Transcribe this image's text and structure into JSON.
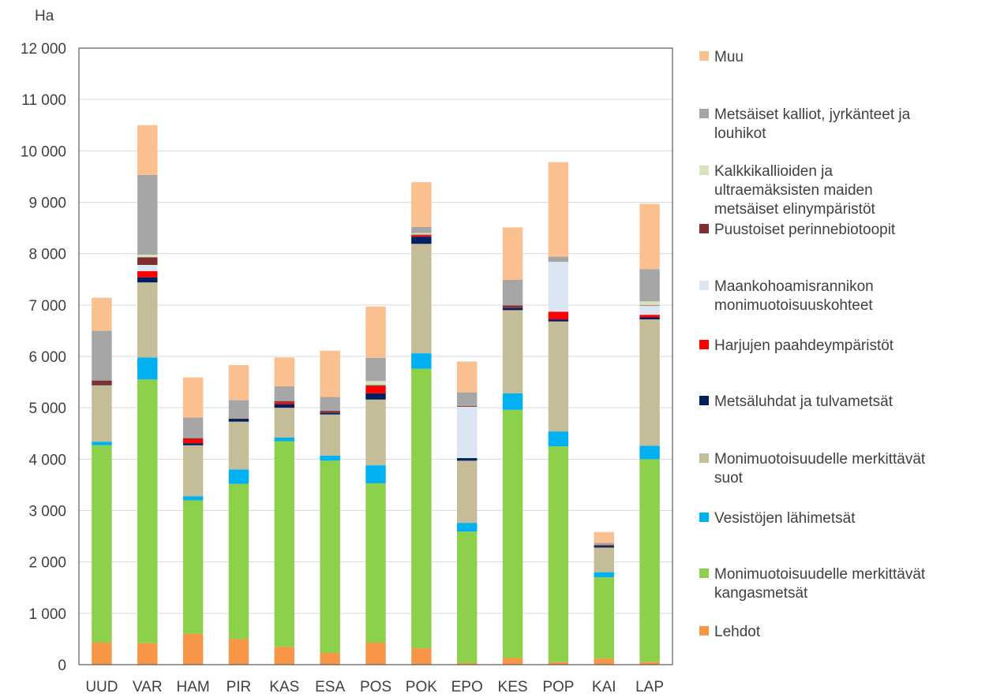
{
  "chart_data": {
    "type": "bar",
    "stacked": true,
    "title": "",
    "ylabel": "Ha",
    "xlabel": "",
    "ylim": [
      0,
      12000
    ],
    "y_ticks": [
      {
        "value": 0,
        "label": "0"
      },
      {
        "value": 1000,
        "label": "1 000"
      },
      {
        "value": 2000,
        "label": "2 000"
      },
      {
        "value": 3000,
        "label": "3 000"
      },
      {
        "value": 4000,
        "label": "4 000"
      },
      {
        "value": 5000,
        "label": "5 000"
      },
      {
        "value": 6000,
        "label": "6 000"
      },
      {
        "value": 7000,
        "label": "7 000"
      },
      {
        "value": 8000,
        "label": "8 000"
      },
      {
        "value": 9000,
        "label": "9 000"
      },
      {
        "value": 10000,
        "label": "10 000"
      },
      {
        "value": 11000,
        "label": "11 000"
      },
      {
        "value": 12000,
        "label": "12 000"
      }
    ],
    "grid": true,
    "legend_position": "right",
    "categories": [
      "UUD",
      "VAR",
      "HAM",
      "PIR",
      "KAS",
      "ESA",
      "POS",
      "POK",
      "EPO",
      "KES",
      "POP",
      "KAI",
      "LAP"
    ],
    "series": [
      {
        "name": "Lehdot",
        "color": "#F79646",
        "values": [
          430,
          420,
          600,
          500,
          350,
          230,
          430,
          320,
          30,
          130,
          50,
          120,
          50
        ]
      },
      {
        "name": "Monimuotoisuudelle merkittävät kangasmetsät",
        "color": "#8DD14A",
        "values": [
          3840,
          5130,
          2600,
          3020,
          4000,
          3740,
          3100,
          5440,
          2560,
          4830,
          4200,
          1580,
          3950
        ]
      },
      {
        "name": "Vesistöjen lähimetsät",
        "color": "#00B0F0",
        "values": [
          70,
          430,
          80,
          280,
          70,
          100,
          350,
          300,
          170,
          320,
          290,
          100,
          260
        ]
      },
      {
        "name": "Monimuotoisuudelle merkittävät suot",
        "color": "#C4BD97",
        "values": [
          1100,
          1460,
          990,
          930,
          580,
          800,
          1280,
          2130,
          1210,
          1620,
          2140,
          480,
          2460
        ]
      },
      {
        "name": "Metsäluhdat ja tulvametsät",
        "color": "#002060",
        "values": [
          20,
          100,
          40,
          50,
          70,
          30,
          120,
          140,
          50,
          40,
          40,
          30,
          40
        ]
      },
      {
        "name": "Harjujen paahdeympäristöt",
        "color": "#FF0000",
        "values": [
          10,
          120,
          80,
          0,
          30,
          0,
          140,
          30,
          0,
          0,
          150,
          0,
          50
        ]
      },
      {
        "name": "Maankohoamisrannikon monimuotoisuuskohteet",
        "color": "#DCE6F2",
        "values": [
          0,
          120,
          0,
          0,
          0,
          0,
          0,
          0,
          1000,
          0,
          970,
          0,
          180
        ]
      },
      {
        "name": "Puustoiset perinnebiotoopit",
        "color": "#7F2F2F",
        "values": [
          60,
          150,
          20,
          10,
          30,
          40,
          20,
          10,
          20,
          50,
          0,
          20,
          10
        ]
      },
      {
        "name": "Kalkkikallioiden ja ultraemäksisten maiden metsäiset elinympäristöt",
        "color": "#D7E4BD",
        "values": [
          0,
          50,
          0,
          0,
          0,
          0,
          80,
          30,
          10,
          0,
          0,
          0,
          70
        ]
      },
      {
        "name": "Metsäiset kalliot, jyrkänteet ja louhikot",
        "color": "#A6A6A6",
        "values": [
          970,
          1550,
          400,
          360,
          290,
          270,
          450,
          120,
          250,
          500,
          100,
          40,
          630
        ]
      },
      {
        "name": "Muu",
        "color": "#FAC090",
        "values": [
          640,
          970,
          780,
          680,
          560,
          900,
          1000,
          870,
          600,
          1020,
          1840,
          210,
          1270
        ]
      }
    ]
  }
}
